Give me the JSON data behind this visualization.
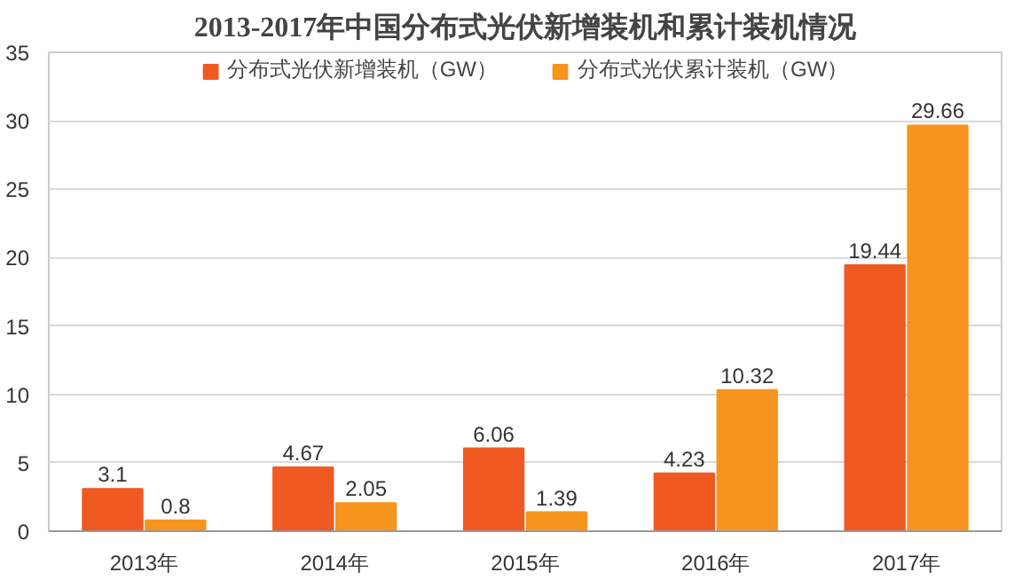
{
  "chart_data": {
    "type": "bar",
    "title": "2013-2017年中国分布式光伏新增装机和累计装机情况",
    "categories": [
      "2013年",
      "2014年",
      "2015年",
      "2016年",
      "2017年"
    ],
    "series": [
      {
        "name": "分布式光伏新增装机（GW）",
        "color": "#f05a22",
        "values": [
          3.1,
          4.67,
          6.06,
          4.23,
          19.44
        ]
      },
      {
        "name": "分布式光伏累计装机（GW）",
        "color": "#f7941d",
        "values": [
          0.8,
          2.05,
          1.39,
          10.32,
          29.66
        ]
      }
    ],
    "ylim": [
      0,
      35
    ],
    "yticks": [
      0,
      5,
      10,
      15,
      20,
      25,
      30,
      35
    ],
    "grid": "y",
    "legend": "top",
    "data_labels": true
  }
}
